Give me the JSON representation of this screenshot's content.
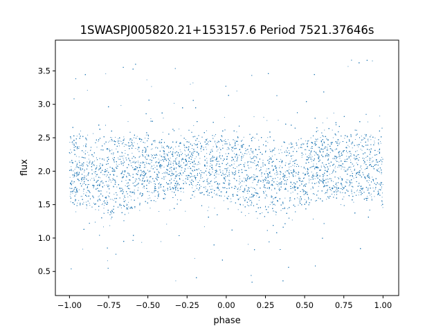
{
  "chart_data": {
    "type": "scatter",
    "title": "1SWASPJ005820.21+153157.6 Period 7521.37646s",
    "xlabel": "phase",
    "ylabel": "flux",
    "xlim": [
      -1.09,
      1.1
    ],
    "ylim": [
      0.14,
      3.96
    ],
    "xticks": [
      -1.0,
      -0.75,
      -0.5,
      -0.25,
      0.0,
      0.25,
      0.5,
      0.75,
      1.0
    ],
    "xtick_labels": [
      "−1.00",
      "−0.75",
      "−0.50",
      "−0.25",
      "0.00",
      "0.25",
      "0.50",
      "0.75",
      "1.00"
    ],
    "yticks": [
      0.5,
      1.0,
      1.5,
      2.0,
      2.5,
      3.0,
      3.5
    ],
    "ytick_labels": [
      "0.5",
      "1.0",
      "1.5",
      "2.0",
      "2.5",
      "3.0",
      "3.5"
    ],
    "grid": false,
    "marker_color": "#1f77b4",
    "data_range": {
      "phase": [
        -1.0,
        1.0
      ],
      "flux": [
        0.3,
        3.75
      ]
    },
    "dense_band": [
      {
        "phase": -1.0,
        "low": 1.5,
        "high": 2.55
      },
      {
        "phase": -0.75,
        "low": 1.35,
        "high": 2.5
      },
      {
        "phase": -0.5,
        "low": 1.5,
        "high": 2.5
      },
      {
        "phase": -0.25,
        "low": 1.7,
        "high": 2.45
      },
      {
        "phase": 0.0,
        "low": 1.55,
        "high": 2.5
      },
      {
        "phase": 0.25,
        "low": 1.35,
        "high": 2.45
      },
      {
        "phase": 0.5,
        "low": 1.5,
        "high": 2.5
      },
      {
        "phase": 0.75,
        "low": 1.65,
        "high": 2.55
      },
      {
        "phase": 1.0,
        "low": 1.5,
        "high": 2.55
      }
    ]
  }
}
